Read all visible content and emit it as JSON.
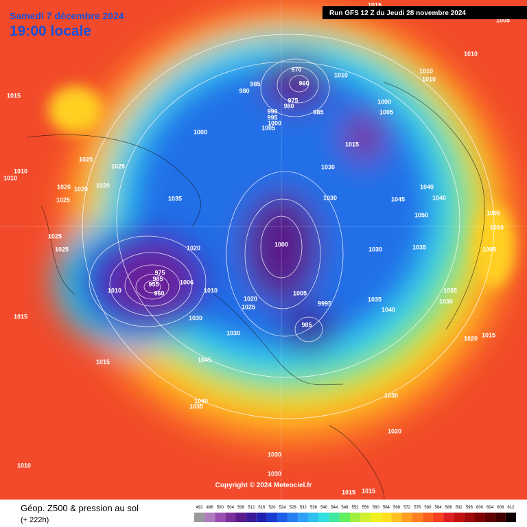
{
  "header": {
    "date": "Samedi 7 décembre 2024",
    "time": "19:00 locale",
    "run": "Run GFS 12 Z du Jeudi 28 novembre 2024"
  },
  "footer": {
    "title": "Géop. Z500 & pression au sol",
    "lead": "(+ 222h)",
    "copyright": "Copyright © 2024 Meteociel.fr"
  },
  "legend": {
    "values": [
      492,
      496,
      500,
      504,
      508,
      512,
      516,
      520,
      524,
      528,
      532,
      536,
      540,
      544,
      548,
      552,
      556,
      560,
      564,
      568,
      572,
      576,
      580,
      584,
      588,
      592,
      596,
      600,
      604,
      608,
      612
    ],
    "colors": [
      "#9a9a9a",
      "#b07cc0",
      "#9a4fb0",
      "#7a2e9a",
      "#5a1a8a",
      "#3a1a9a",
      "#2020b0",
      "#1a3cd0",
      "#1f5ee8",
      "#2a80f0",
      "#30a0f8",
      "#30c0f0",
      "#30e0e0",
      "#40e8a0",
      "#60f060",
      "#a0f040",
      "#d0f030",
      "#f0f020",
      "#ffe020",
      "#ffc020",
      "#ffa020",
      "#ff8020",
      "#ff6020",
      "#f84020",
      "#e02020",
      "#c01010",
      "#a00808",
      "#800000",
      "#600000",
      "#400000",
      "#100000"
    ]
  },
  "map": {
    "pressure_labels": [
      "1015",
      "1010",
      "1010",
      "1025",
      "1025",
      "1020",
      "1020",
      "1020",
      "1025",
      "1035",
      "1025",
      "1025",
      "1020",
      "1010",
      "975",
      "985",
      "955",
      "960",
      "1006",
      "1010",
      "1030",
      "1030",
      "1015",
      "1015",
      "1045",
      "1040",
      "1035",
      "1030",
      "1030",
      "1010",
      "1015",
      "1015",
      "1020",
      "1030",
      "1035",
      "1040",
      "1030",
      "1035",
      "1030",
      "1030",
      "1000",
      "1000",
      "1025",
      "1020",
      "1005",
      "985",
      "9995",
      "1000",
      "1005",
      "1015",
      "1010",
      "1010",
      "1010",
      "1010",
      "1040",
      "1040",
      "1045",
      "1050",
      "1005",
      "1010",
      "1005",
      "1035",
      "1030",
      "1020",
      "1015",
      "970",
      "960",
      "975",
      "980",
      "985",
      "980",
      "990",
      "995",
      "1000",
      "1005",
      "985",
      "1005",
      "1015"
    ]
  }
}
